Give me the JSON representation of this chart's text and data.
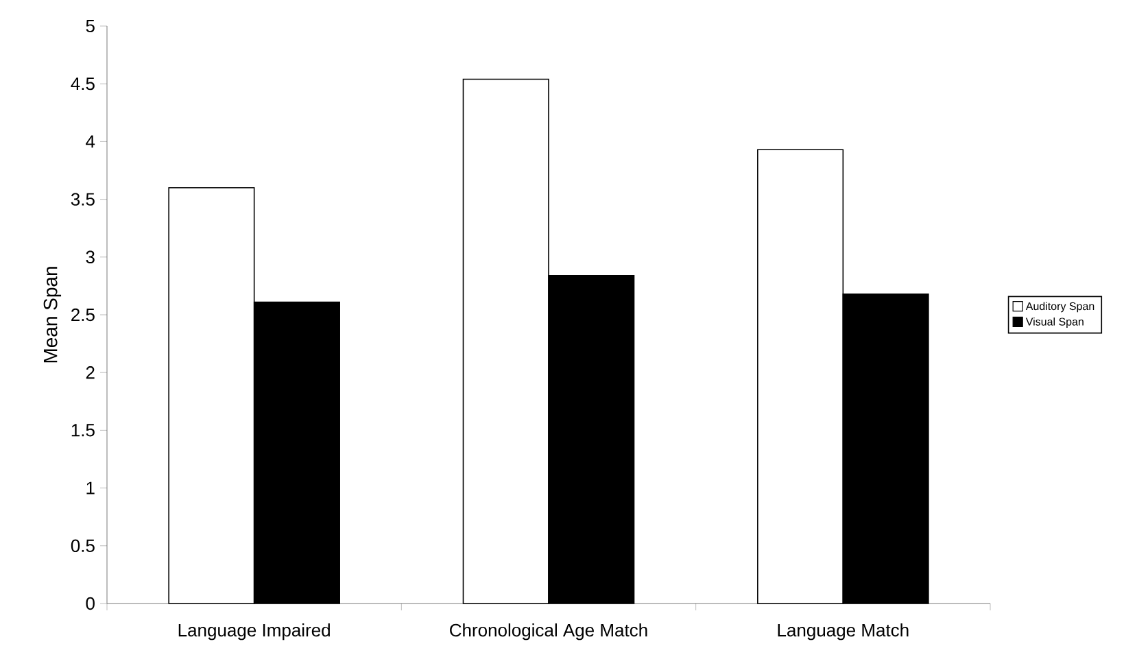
{
  "chart_data": {
    "type": "bar",
    "ylabel": "Mean Span",
    "categories": [
      "Language Impaired",
      "Chronological Age Match",
      "Language Match"
    ],
    "series": [
      {
        "name": "Auditory Span",
        "color": "#ffffff",
        "values": [
          3.6,
          4.54,
          3.93
        ]
      },
      {
        "name": "Visual Span",
        "color": "#000000",
        "values": [
          2.61,
          2.84,
          2.68
        ]
      }
    ],
    "ylim": [
      0,
      5
    ],
    "yticks": [
      0,
      0.5,
      1,
      1.5,
      2,
      2.5,
      3,
      3.5,
      4,
      4.5,
      5
    ],
    "legend": "right",
    "grid": false
  }
}
